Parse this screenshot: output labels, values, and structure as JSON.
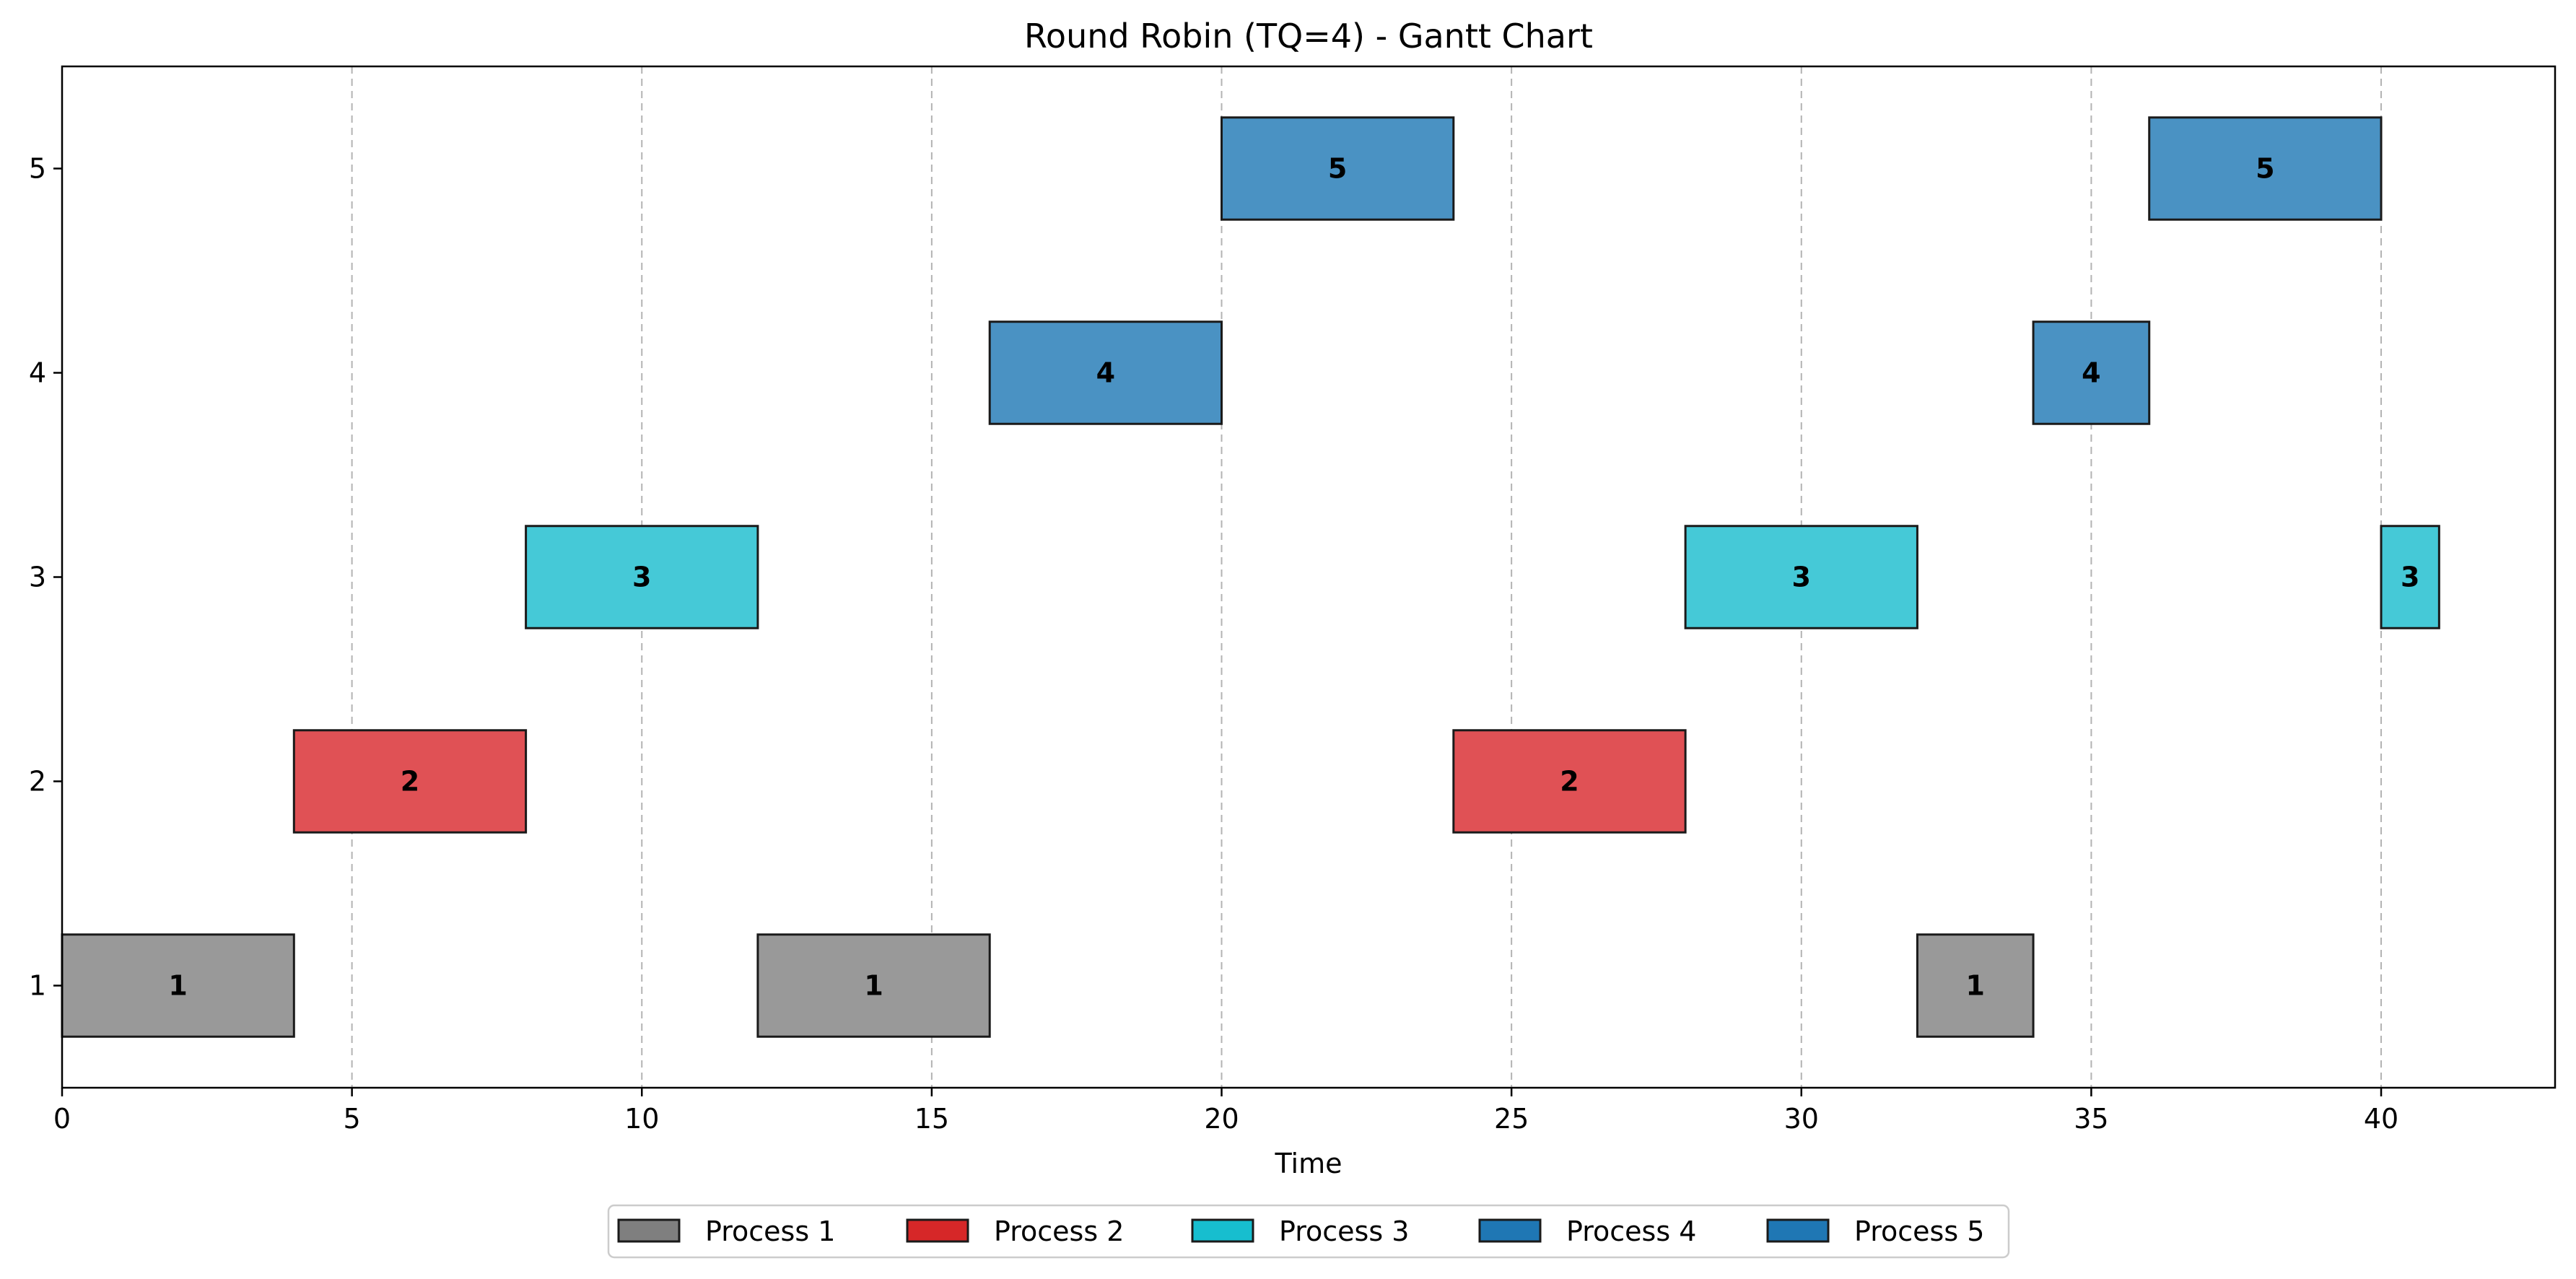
{
  "chart_data": {
    "type": "gantt",
    "title": "Round Robin (TQ=4) - Gantt Chart",
    "xlabel": "Time",
    "ylabel": "",
    "xlim": [
      0,
      43
    ],
    "ylim": [
      0.5,
      5.5
    ],
    "x_ticks": [
      0,
      5,
      10,
      15,
      20,
      25,
      30,
      35,
      40
    ],
    "y_ticks": [
      1,
      2,
      3,
      4,
      5
    ],
    "grid": "x-dashed",
    "legend_position": "bottom-center",
    "processes": [
      {
        "id": 1,
        "name": "Process 1",
        "legend_color": "#7f7f7f",
        "bar_color": "#999999"
      },
      {
        "id": 2,
        "name": "Process 2",
        "legend_color": "#d62728",
        "bar_color": "#e05155"
      },
      {
        "id": 3,
        "name": "Process 3",
        "legend_color": "#17becf",
        "bar_color": "#45c9d7"
      },
      {
        "id": 4,
        "name": "Process 4",
        "legend_color": "#1f77b4",
        "bar_color": "#4a92c3"
      },
      {
        "id": 5,
        "name": "Process 5",
        "legend_color": "#1f77b4",
        "bar_color": "#4a92c3"
      }
    ],
    "segments": [
      {
        "process": 1,
        "start": 0,
        "end": 4,
        "label": "1"
      },
      {
        "process": 2,
        "start": 4,
        "end": 8,
        "label": "2"
      },
      {
        "process": 3,
        "start": 8,
        "end": 12,
        "label": "3"
      },
      {
        "process": 1,
        "start": 12,
        "end": 16,
        "label": "1"
      },
      {
        "process": 4,
        "start": 16,
        "end": 20,
        "label": "4"
      },
      {
        "process": 5,
        "start": 20,
        "end": 24,
        "label": "5"
      },
      {
        "process": 2,
        "start": 24,
        "end": 28,
        "label": "2"
      },
      {
        "process": 3,
        "start": 28,
        "end": 32,
        "label": "3"
      },
      {
        "process": 1,
        "start": 32,
        "end": 34,
        "label": "1"
      },
      {
        "process": 4,
        "start": 34,
        "end": 36,
        "label": "4"
      },
      {
        "process": 5,
        "start": 36,
        "end": 40,
        "label": "5"
      },
      {
        "process": 3,
        "start": 40,
        "end": 41,
        "label": "3"
      }
    ]
  }
}
